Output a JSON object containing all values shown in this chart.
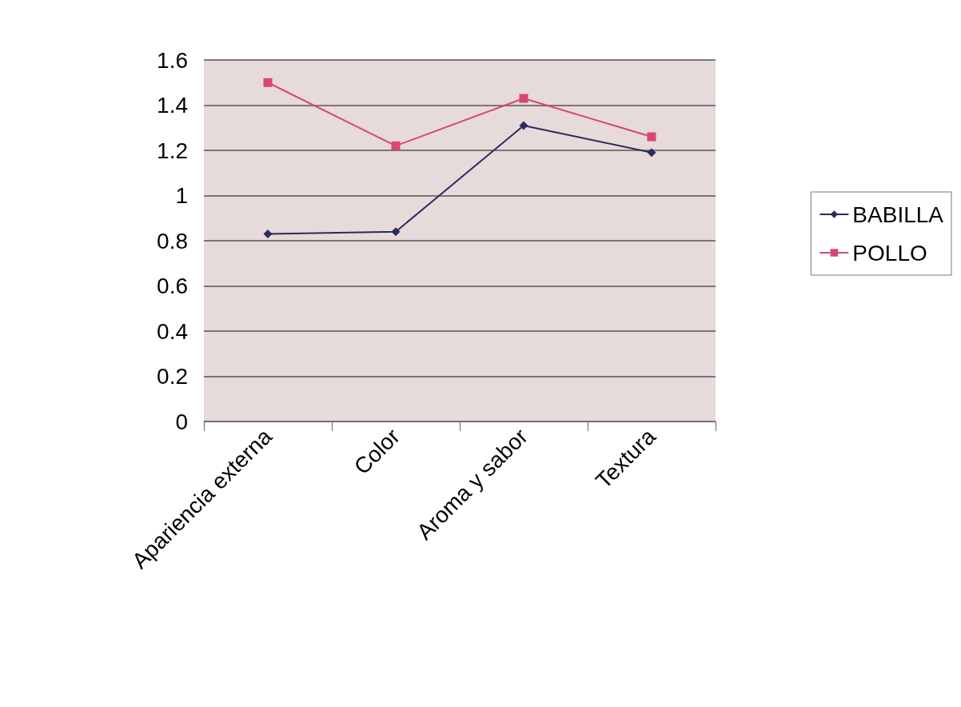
{
  "chart_data": {
    "type": "line",
    "categories": [
      "Apariencia externa",
      "Color",
      "Aroma y sabor",
      "Textura"
    ],
    "series": [
      {
        "name": "BABILLA",
        "color": "#2b2b5c",
        "marker": "diamond",
        "values": [
          0.83,
          0.84,
          1.31,
          1.19
        ]
      },
      {
        "name": "POLLO",
        "color": "#d9476f",
        "marker": "square",
        "values": [
          1.5,
          1.22,
          1.43,
          1.26
        ]
      }
    ],
    "ylim": [
      0,
      1.6
    ],
    "yticks": [
      0,
      0.2,
      0.4,
      0.6,
      0.8,
      1,
      1.2,
      1.4,
      1.6
    ],
    "grid": "y",
    "legend": "right",
    "line_style": "solid"
  }
}
